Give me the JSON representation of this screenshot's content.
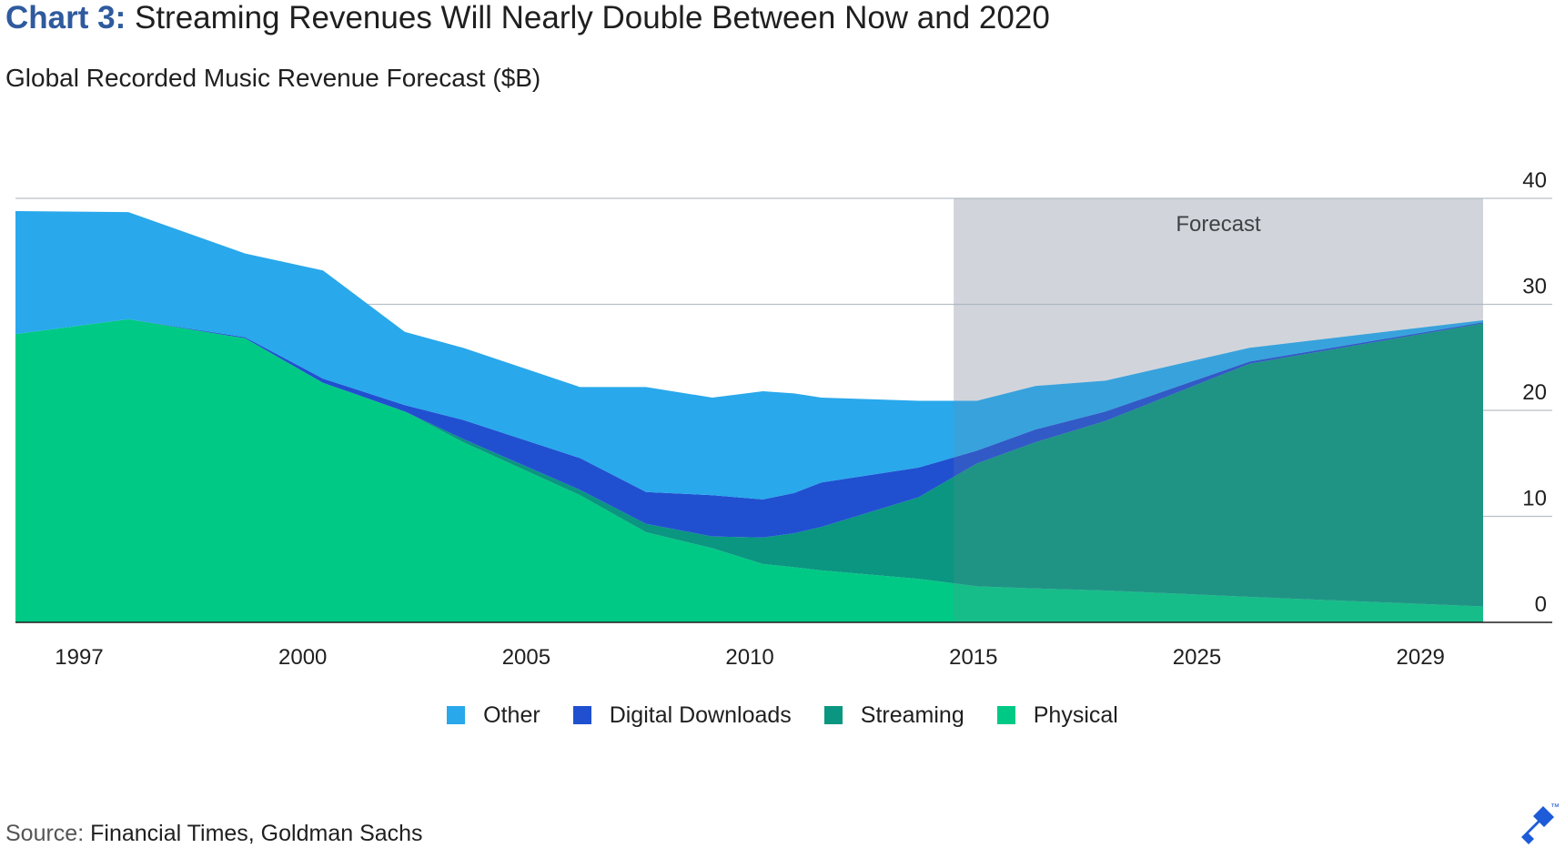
{
  "title": {
    "prefix": "Chart 3:",
    "text": "Streaming Revenues Will Nearly Double Between Now and 2020"
  },
  "subtitle": "Global Recorded Music Revenue Forecast ($B)",
  "forecast_label": "Forecast",
  "source": {
    "label": "Source:",
    "text": "Financial Times, Goldman Sachs"
  },
  "logo": {
    "icon": "toptal-logo-icon",
    "mark": "™"
  },
  "colors": {
    "other": "#29a8ec",
    "digital_downloads": "#2050d0",
    "streaming": "#0a9680",
    "physical": "#00c985",
    "forecast_shade": "#e3e6e9",
    "title_accent": "#2f5a9e"
  },
  "chart_data": {
    "type": "area",
    "stacked": true,
    "title": "Chart 3: Streaming Revenues Will Nearly Double Between Now and 2020",
    "subtitle": "Global Recorded Music Revenue Forecast ($B)",
    "xlabel": "",
    "ylabel": "",
    "x_ticks": [
      "1997",
      "2000",
      "2005",
      "2010",
      "2015",
      "2025",
      "2029"
    ],
    "y_ticks": [
      0,
      10,
      20,
      30,
      40
    ],
    "ylim": [
      0,
      40
    ],
    "y_axis_position": "right",
    "grid": true,
    "legend_position": "bottom",
    "forecast_region": {
      "label": "Forecast",
      "from_x": 2018.4,
      "to_x": 2032.0
    },
    "x": [
      1994.3,
      1997.2,
      2000.2,
      2002.2,
      2004.3,
      2005.8,
      2008.8,
      2010.5,
      2012.2,
      2013.5,
      2014.3,
      2015.0,
      2017.5,
      2019.0,
      2020.5,
      2022.3,
      2026.0,
      2032.0
    ],
    "series": [
      {
        "name": "Physical",
        "color": "#00c985",
        "values": [
          27.2,
          28.6,
          26.8,
          22.6,
          19.9,
          17.0,
          12.0,
          8.5,
          7.0,
          5.5,
          5.2,
          4.9,
          4.1,
          3.4,
          3.2,
          3.0,
          2.4,
          1.5
        ]
      },
      {
        "name": "Streaming",
        "color": "#0a9680",
        "values": [
          0,
          0,
          0,
          0,
          0,
          0.3,
          0.5,
          0.8,
          1.1,
          2.5,
          3.2,
          4.1,
          7.7,
          11.6,
          13.8,
          16.0,
          22.0,
          26.7
        ]
      },
      {
        "name": "Digital Downloads",
        "color": "#2050d0",
        "values": [
          0,
          0,
          0.1,
          0.4,
          0.6,
          1.8,
          3.0,
          3.0,
          3.9,
          3.6,
          3.8,
          4.2,
          2.8,
          1.2,
          1.2,
          0.9,
          0.2,
          0.1
        ]
      },
      {
        "name": "Other",
        "color": "#29a8ec",
        "values": [
          11.6,
          10.1,
          7.9,
          10.2,
          6.9,
          6.8,
          6.7,
          9.9,
          9.2,
          10.2,
          9.4,
          8.0,
          6.3,
          4.7,
          4.1,
          2.9,
          1.3,
          0.2
        ]
      }
    ],
    "legend_order": [
      "Other",
      "Digital Downloads",
      "Streaming",
      "Physical"
    ]
  }
}
